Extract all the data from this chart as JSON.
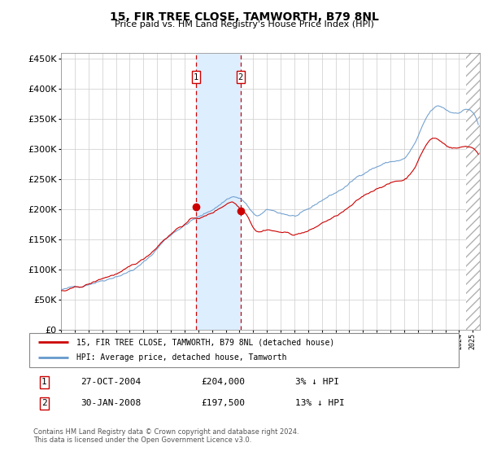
{
  "title": "15, FIR TREE CLOSE, TAMWORTH, B79 8NL",
  "subtitle": "Price paid vs. HM Land Registry's House Price Index (HPI)",
  "legend_line1": "15, FIR TREE CLOSE, TAMWORTH, B79 8NL (detached house)",
  "legend_line2": "HPI: Average price, detached house, Tamworth",
  "footnote": "Contains HM Land Registry data © Crown copyright and database right 2024.\nThis data is licensed under the Open Government Licence v3.0.",
  "purchase1_date": 2004.83,
  "purchase1_price": 204000,
  "purchase1_label": "27-OCT-2004",
  "purchase1_amount": "£204,000",
  "purchase1_hpi": "3% ↓ HPI",
  "purchase2_date": 2008.08,
  "purchase2_price": 197500,
  "purchase2_label": "30-JAN-2008",
  "purchase2_amount": "£197,500",
  "purchase2_hpi": "13% ↓ HPI",
  "hpi_color": "#6699cc",
  "price_color": "#cc0000",
  "highlight_color": "#ddeeff",
  "grid_color": "#cccccc",
  "ymin": 0,
  "ymax": 460000,
  "xmin": 1995,
  "xmax": 2025.5,
  "hpi_anchors": [
    [
      1995.0,
      67000
    ],
    [
      1995.5,
      67500
    ],
    [
      1996.0,
      70000
    ],
    [
      1996.5,
      72000
    ],
    [
      1997.0,
      77000
    ],
    [
      1997.5,
      81000
    ],
    [
      1998.0,
      85000
    ],
    [
      1998.5,
      89000
    ],
    [
      1999.0,
      94000
    ],
    [
      1999.5,
      98000
    ],
    [
      2000.0,
      103000
    ],
    [
      2000.5,
      109000
    ],
    [
      2001.0,
      117000
    ],
    [
      2001.5,
      127000
    ],
    [
      2002.0,
      140000
    ],
    [
      2002.5,
      153000
    ],
    [
      2003.0,
      163000
    ],
    [
      2003.5,
      173000
    ],
    [
      2004.0,
      180000
    ],
    [
      2004.5,
      188000
    ],
    [
      2005.0,
      193000
    ],
    [
      2005.5,
      198000
    ],
    [
      2006.0,
      205000
    ],
    [
      2006.5,
      213000
    ],
    [
      2007.0,
      222000
    ],
    [
      2007.5,
      228000
    ],
    [
      2008.0,
      225000
    ],
    [
      2008.5,
      215000
    ],
    [
      2009.0,
      198000
    ],
    [
      2009.5,
      196000
    ],
    [
      2010.0,
      202000
    ],
    [
      2010.5,
      200000
    ],
    [
      2011.0,
      197000
    ],
    [
      2011.5,
      195000
    ],
    [
      2012.0,
      193000
    ],
    [
      2012.5,
      196000
    ],
    [
      2013.0,
      200000
    ],
    [
      2013.5,
      207000
    ],
    [
      2014.0,
      215000
    ],
    [
      2014.5,
      222000
    ],
    [
      2015.0,
      228000
    ],
    [
      2015.5,
      235000
    ],
    [
      2016.0,
      243000
    ],
    [
      2016.5,
      252000
    ],
    [
      2017.0,
      260000
    ],
    [
      2017.5,
      268000
    ],
    [
      2018.0,
      273000
    ],
    [
      2018.5,
      278000
    ],
    [
      2019.0,
      281000
    ],
    [
      2019.5,
      283000
    ],
    [
      2020.0,
      286000
    ],
    [
      2020.5,
      300000
    ],
    [
      2021.0,
      320000
    ],
    [
      2021.5,
      345000
    ],
    [
      2022.0,
      362000
    ],
    [
      2022.5,
      368000
    ],
    [
      2023.0,
      363000
    ],
    [
      2023.5,
      358000
    ],
    [
      2024.0,
      360000
    ],
    [
      2024.5,
      365000
    ],
    [
      2025.0,
      360000
    ]
  ],
  "price_anchors": [
    [
      1995.0,
      65000
    ],
    [
      1995.5,
      65500
    ],
    [
      1996.0,
      68000
    ],
    [
      1996.5,
      70000
    ],
    [
      1997.0,
      74000
    ],
    [
      1997.5,
      78000
    ],
    [
      1998.0,
      83000
    ],
    [
      1998.5,
      87000
    ],
    [
      1999.0,
      91000
    ],
    [
      1999.5,
      95000
    ],
    [
      2000.0,
      100000
    ],
    [
      2000.5,
      106000
    ],
    [
      2001.0,
      113000
    ],
    [
      2001.5,
      123000
    ],
    [
      2002.0,
      135000
    ],
    [
      2002.5,
      148000
    ],
    [
      2003.0,
      158000
    ],
    [
      2003.5,
      168000
    ],
    [
      2004.0,
      175000
    ],
    [
      2004.5,
      183000
    ],
    [
      2005.0,
      185000
    ],
    [
      2005.5,
      188000
    ],
    [
      2006.0,
      193000
    ],
    [
      2006.5,
      200000
    ],
    [
      2007.0,
      208000
    ],
    [
      2007.5,
      213000
    ],
    [
      2008.0,
      204000
    ],
    [
      2008.5,
      195000
    ],
    [
      2009.0,
      175000
    ],
    [
      2009.5,
      168000
    ],
    [
      2010.0,
      172000
    ],
    [
      2010.5,
      170000
    ],
    [
      2011.0,
      168000
    ],
    [
      2011.5,
      166000
    ],
    [
      2012.0,
      164000
    ],
    [
      2012.5,
      167000
    ],
    [
      2013.0,
      170000
    ],
    [
      2013.5,
      175000
    ],
    [
      2014.0,
      182000
    ],
    [
      2014.5,
      188000
    ],
    [
      2015.0,
      193000
    ],
    [
      2015.5,
      200000
    ],
    [
      2016.0,
      207000
    ],
    [
      2016.5,
      215000
    ],
    [
      2017.0,
      223000
    ],
    [
      2017.5,
      230000
    ],
    [
      2018.0,
      237000
    ],
    [
      2018.5,
      243000
    ],
    [
      2019.0,
      247000
    ],
    [
      2019.5,
      250000
    ],
    [
      2020.0,
      253000
    ],
    [
      2020.5,
      265000
    ],
    [
      2021.0,
      285000
    ],
    [
      2021.5,
      308000
    ],
    [
      2022.0,
      322000
    ],
    [
      2022.5,
      320000
    ],
    [
      2023.0,
      312000
    ],
    [
      2023.5,
      308000
    ],
    [
      2024.0,
      308000
    ],
    [
      2024.5,
      310000
    ],
    [
      2025.0,
      308000
    ]
  ]
}
